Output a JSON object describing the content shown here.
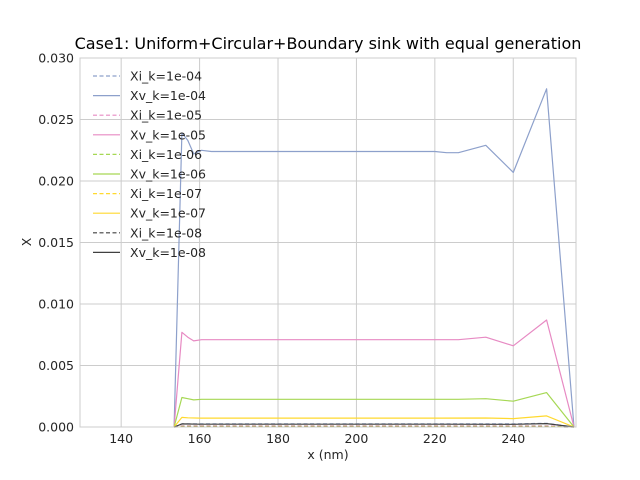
{
  "chart_data": {
    "type": "line",
    "title": "Case1: Uniform+Circular+Boundary sink with equal generation",
    "xlabel": "x (nm)",
    "ylabel": "X",
    "xlim": [
      129.5,
      256
    ],
    "ylim": [
      0,
      0.03
    ],
    "xticks": [
      140,
      160,
      180,
      200,
      220,
      240
    ],
    "xtick_labels": [
      "140",
      "160",
      "180",
      "200",
      "220",
      "240"
    ],
    "yticks": [
      0,
      0.005,
      0.01,
      0.015,
      0.02,
      0.025,
      0.03
    ],
    "ytick_labels": [
      "0.000",
      "0.005",
      "0.010",
      "0.015",
      "0.020",
      "0.025",
      "0.030"
    ],
    "grid": true,
    "legend_position": "upper-left",
    "series": [
      {
        "name": "Xi_k=1e-04",
        "style": "dashed",
        "color": "#8DA0CB",
        "x": [
          153.5,
          155.5,
          157,
          159,
          165,
          220,
          226,
          233,
          240,
          248.5,
          255.5
        ],
        "y": [
          0,
          0.00025,
          0.00025,
          0.00025,
          0.00025,
          0.00025,
          0.00025,
          0.00025,
          0.00025,
          0.0003,
          0
        ]
      },
      {
        "name": "Xv_k=1e-04",
        "style": "solid",
        "color": "#8DA0CB",
        "x": [
          153.5,
          155.5,
          157,
          158.5,
          160.5,
          163,
          166,
          180,
          200,
          220,
          223,
          226,
          233,
          240,
          248.5,
          255.5
        ],
        "y": [
          0,
          0.0239,
          0.0233,
          0.0222,
          0.0225,
          0.0224,
          0.0224,
          0.0224,
          0.0224,
          0.0224,
          0.0223,
          0.0223,
          0.0229,
          0.0207,
          0.0275,
          0
        ]
      },
      {
        "name": "Xi_k=1e-05",
        "style": "dashed",
        "color": "#E78AC3",
        "x": [
          153.5,
          155.5,
          157,
          159,
          165,
          220,
          226,
          233,
          240,
          248.5,
          255.5
        ],
        "y": [
          0,
          0.0001,
          0.0001,
          0.0001,
          0.0001,
          0.0001,
          0.0001,
          0.0001,
          0.0001,
          0.0001,
          0
        ]
      },
      {
        "name": "Xv_k=1e-05",
        "style": "solid",
        "color": "#E78AC3",
        "x": [
          153.5,
          155.5,
          157,
          158.5,
          160.5,
          163,
          166,
          180,
          200,
          220,
          226,
          233,
          240,
          248.5,
          255.5
        ],
        "y": [
          0,
          0.0077,
          0.0073,
          0.007,
          0.0071,
          0.0071,
          0.0071,
          0.0071,
          0.0071,
          0.0071,
          0.0071,
          0.0073,
          0.0066,
          0.0087,
          0
        ]
      },
      {
        "name": "Xi_k=1e-06",
        "style": "dashed",
        "color": "#A6D854",
        "x": [
          153.5,
          155.5,
          160,
          220,
          240,
          248.5,
          255.5
        ],
        "y": [
          0,
          5e-05,
          5e-05,
          5e-05,
          5e-05,
          5e-05,
          0
        ]
      },
      {
        "name": "Xv_k=1e-06",
        "style": "solid",
        "color": "#A6D854",
        "x": [
          153.5,
          155.5,
          157,
          158.5,
          160.5,
          166,
          180,
          200,
          220,
          226,
          233,
          240,
          248.5,
          255.5
        ],
        "y": [
          0,
          0.0024,
          0.0023,
          0.0022,
          0.00225,
          0.00225,
          0.00225,
          0.00225,
          0.00225,
          0.00225,
          0.0023,
          0.0021,
          0.0028,
          0
        ]
      },
      {
        "name": "Xi_k=1e-07",
        "style": "dashed",
        "color": "#FFD92F",
        "x": [
          153.5,
          155.5,
          160,
          220,
          240,
          248.5,
          255.5
        ],
        "y": [
          0,
          3e-05,
          3e-05,
          3e-05,
          3e-05,
          3e-05,
          0
        ]
      },
      {
        "name": "Xv_k=1e-07",
        "style": "solid",
        "color": "#FFD92F",
        "x": [
          153.5,
          155.5,
          157,
          160,
          180,
          200,
          220,
          233,
          240,
          248.5,
          255.5
        ],
        "y": [
          0,
          0.00078,
          0.00075,
          0.00072,
          0.00072,
          0.00072,
          0.00072,
          0.00073,
          0.00068,
          0.0009,
          0
        ]
      },
      {
        "name": "Xi_k=1e-08",
        "style": "dashed",
        "color": "#404040",
        "x": [
          153.5,
          155.5,
          160,
          220,
          240,
          248.5,
          255.5
        ],
        "y": [
          0,
          1e-05,
          1e-05,
          1e-05,
          1e-05,
          1e-05,
          0
        ]
      },
      {
        "name": "Xv_k=1e-08",
        "style": "solid",
        "color": "#404040",
        "x": [
          153.5,
          155.5,
          157,
          160,
          180,
          200,
          220,
          240,
          248.5,
          255.5
        ],
        "y": [
          0,
          0.00025,
          0.00024,
          0.00023,
          0.00023,
          0.00023,
          0.00023,
          0.00022,
          0.00028,
          0
        ]
      }
    ]
  }
}
